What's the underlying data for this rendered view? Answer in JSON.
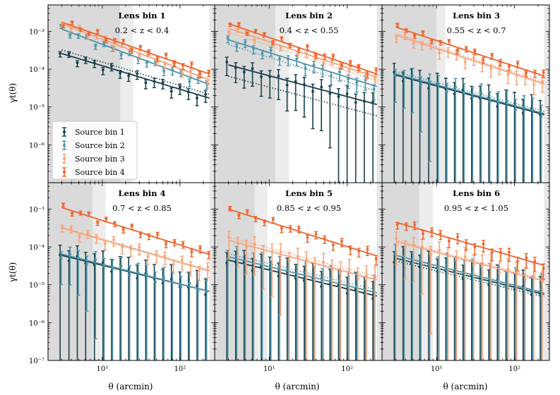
{
  "chart_data": {
    "type": "line",
    "x_label": "θ (arcmin)",
    "y_label": "γt(θ)",
    "x_scale": "log",
    "y_scale": "log",
    "xlim": [
      2.0,
      280
    ],
    "ylim": [
      1e-07,
      0.005
    ],
    "x_ticks": [
      {
        "value": 10,
        "label": "10¹"
      },
      {
        "value": 100,
        "label": "10²"
      }
    ],
    "y_ticks": [
      {
        "value": 1e-07,
        "label": "10⁻⁷"
      },
      {
        "value": 1e-06,
        "label": "10⁻⁶"
      },
      {
        "value": 1e-05,
        "label": "10⁻⁵"
      },
      {
        "value": 0.0001,
        "label": "10⁻⁴"
      },
      {
        "value": 0.001,
        "label": "10⁻³"
      }
    ],
    "series_colors": [
      "#173f4b",
      "#4d95a8",
      "#f7a37a",
      "#f0642c"
    ],
    "legend": {
      "location": "lower-left of top-left panel",
      "entries": [
        "Source bin 1",
        "Source bin 2",
        "Source bin 3",
        "Source bin 4"
      ]
    },
    "panels": [
      {
        "title": "Lens bin 1",
        "zrange": "0.2 < z < 0.4",
        "scale_cut_dark": 17,
        "scale_cut_light": 25,
        "series": [
          {
            "name": "Source bin 1",
            "amp": 0.00026,
            "slope": 0.62,
            "err": 0.12,
            "dot_factor": 1.25
          },
          {
            "name": "Source bin 2",
            "amp": 0.00115,
            "slope": 0.77,
            "err": 0.09,
            "dot_factor": 1.0
          },
          {
            "name": "Source bin 3",
            "amp": 0.0016,
            "slope": 0.78,
            "err": 0.08,
            "dot_factor": 1.0
          },
          {
            "name": "Source bin 4",
            "amp": 0.00175,
            "slope": 0.72,
            "err": 0.07,
            "dot_factor": 1.0
          }
        ]
      },
      {
        "title": "Lens bin 2",
        "zrange": "0.4 < z < 0.55",
        "scale_cut_dark": 12,
        "scale_cut_light": 18,
        "series": [
          {
            "name": "Source bin 1",
            "amp": 0.00013,
            "slope": 0.55,
            "err": 0.35,
            "dot_factor": 0.5
          },
          {
            "name": "Source bin 2",
            "amp": 0.0006,
            "slope": 0.65,
            "err": 0.15,
            "dot_factor": 0.75
          },
          {
            "name": "Source bin 3",
            "amp": 0.0012,
            "slope": 0.68,
            "err": 0.08,
            "dot_factor": 0.8
          },
          {
            "name": "Source bin 4",
            "amp": 0.0016,
            "slope": 0.7,
            "err": 0.07,
            "dot_factor": 1.0
          }
        ]
      },
      {
        "title": "Lens bin 3",
        "zrange": "0.55 < z < 0.7",
        "scale_cut_dark": 10,
        "scale_cut_light": 13,
        "series": [
          {
            "name": "Source bin 1",
            "amp": 7e-05,
            "slope": 0.55,
            "err": 0.7,
            "dot_factor": 1.0
          },
          {
            "name": "Source bin 2",
            "amp": 7.5e-05,
            "slope": 0.55,
            "err": 0.5,
            "dot_factor": 1.15
          },
          {
            "name": "Source bin 3",
            "amp": 0.0008,
            "slope": 0.68,
            "err": 0.15,
            "dot_factor": 1.1
          },
          {
            "name": "Source bin 4",
            "amp": 0.0013,
            "slope": 0.68,
            "err": 0.08,
            "dot_factor": 1.0
          }
        ]
      },
      {
        "title": "Lens bin 4",
        "zrange": "0.7 < z < 0.85",
        "scale_cut_dark": 7.5,
        "scale_cut_light": 11,
        "series": [
          {
            "name": "Source bin 1",
            "amp": 6e-05,
            "slope": 0.5,
            "err": 0.8,
            "dot_factor": 1.0
          },
          {
            "name": "Source bin 2",
            "amp": 6.5e-05,
            "slope": 0.52,
            "err": 0.5,
            "dot_factor": 1.0
          },
          {
            "name": "Source bin 3",
            "amp": 0.00032,
            "slope": 0.6,
            "err": 0.15,
            "dot_factor": 1.05
          },
          {
            "name": "Source bin 4",
            "amp": 0.0011,
            "slope": 0.65,
            "err": 0.08,
            "dot_factor": 1.0
          }
        ]
      },
      {
        "title": "Lens bin 5",
        "zrange": "0.85 < z < 0.95",
        "scale_cut_dark": 6.5,
        "scale_cut_light": 9.5,
        "series": [
          {
            "name": "Source bin 1",
            "amp": 4.5e-05,
            "slope": 0.5,
            "err": 0.9,
            "dot_factor": 1.0
          },
          {
            "name": "Source bin 2",
            "amp": 5.5e-05,
            "slope": 0.5,
            "err": 0.7,
            "dot_factor": 1.2
          },
          {
            "name": "Source bin 3",
            "amp": 0.00015,
            "slope": 0.55,
            "err": 0.45,
            "dot_factor": 1.2
          },
          {
            "name": "Source bin 4",
            "amp": 0.001,
            "slope": 0.65,
            "err": 0.1,
            "dot_factor": 1.0
          }
        ]
      },
      {
        "title": "Lens bin 6",
        "zrange": "0.95 < z < 1.05",
        "scale_cut_dark": 6,
        "scale_cut_light": 9,
        "series": [
          {
            "name": "Source bin 1",
            "amp": 5e-05,
            "slope": 0.5,
            "err": 0.9,
            "dot_factor": 0.85
          },
          {
            "name": "Source bin 2",
            "amp": 6e-05,
            "slope": 0.52,
            "err": 0.8,
            "dot_factor": 0.85
          },
          {
            "name": "Source bin 3",
            "amp": 0.00014,
            "slope": 0.55,
            "err": 0.5,
            "dot_factor": 1.1
          },
          {
            "name": "Source bin 4",
            "amp": 0.00045,
            "slope": 0.6,
            "err": 0.15,
            "dot_factor": 1.0
          }
        ]
      }
    ],
    "theta_points": [
      3.0,
      3.9,
      5.0,
      6.4,
      8.3,
      10.7,
      13.8,
      17.8,
      22.9,
      29.5,
      38.0,
      49.0,
      63.1,
      81.3,
      104.7,
      134.9,
      173.8,
      224.0
    ],
    "line_types": {
      "solid": "model",
      "dotted": "alternative model"
    }
  }
}
